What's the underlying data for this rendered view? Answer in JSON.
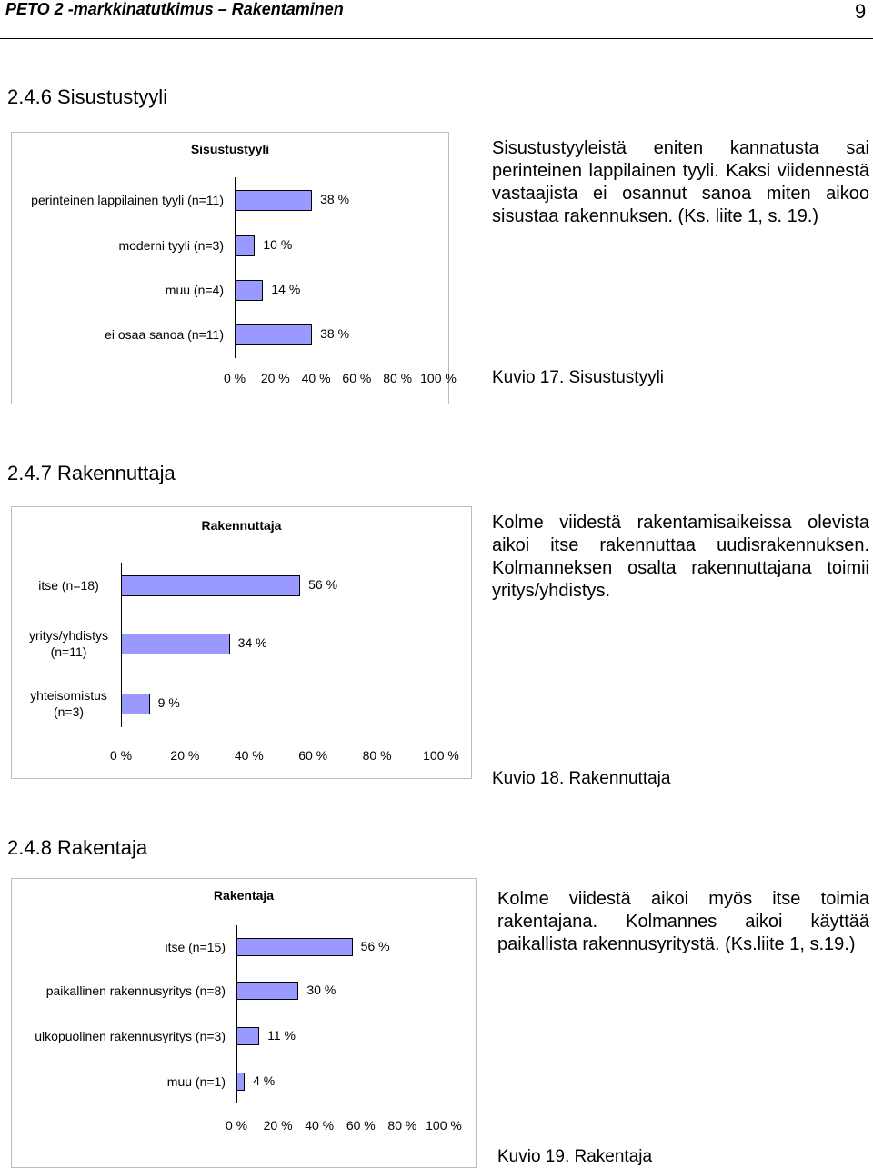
{
  "header": {
    "title": "PETO 2 -markkinatutkimus – Rakentaminen",
    "page_number": "9"
  },
  "sections": [
    {
      "heading": "2.4.6  Sisustustyyli",
      "paragraph": "Sisustustyyleistä eniten kannatusta sai perinteinen lappilainen tyyli. Kaksi viidennestä vastaajista ei osannut sanoa miten aikoo sisustaa rakennuksen. (Ks. liite 1, s. 19.)",
      "caption": "Kuvio 17. Sisustustyyli"
    },
    {
      "heading": "2.4.7  Rakennuttaja",
      "paragraph": "Kolme viidestä rakentamisaikeissa olevista aikoi itse rakennuttaa uudisrakennuksen. Kolmanneksen osalta rakennuttajana toimii yritys/yhdistys.",
      "caption": "Kuvio 18. Rakennuttaja"
    },
    {
      "heading": "2.4.8  Rakentaja",
      "paragraph": "Kolme viidestä aikoi myös itse toimia rakentajana. Kolmannes aikoi käyttää paikallista rakennusyritystä. (Ks.liite 1, s.19.)",
      "caption": "Kuvio 19. Rakentaja"
    }
  ],
  "chart_data": [
    {
      "type": "bar",
      "orientation": "horizontal",
      "title": "Sisustustyyli",
      "categories": [
        "perinteinen lappilainen tyyli (n=11)",
        "moderni tyyli (n=3)",
        "muu (n=4)",
        "ei osaa sanoa (n=11)"
      ],
      "values": [
        38,
        10,
        14,
        38
      ],
      "value_labels": [
        "38 %",
        "10 %",
        "14 %",
        "38 %"
      ],
      "xlim": [
        0,
        100
      ],
      "ticks": [
        "0 %",
        "20 %",
        "40 %",
        "60 %",
        "80 %",
        "100 %"
      ],
      "bar_color": "#9999ff"
    },
    {
      "type": "bar",
      "orientation": "horizontal",
      "title": "Rakennuttaja",
      "categories": [
        "itse (n=18)",
        "yritys/yhdistys (n=11)",
        "yhteisomistus (n=3)"
      ],
      "values": [
        56,
        34,
        9
      ],
      "value_labels": [
        "56 %",
        "34 %",
        "9 %"
      ],
      "xlim": [
        0,
        100
      ],
      "ticks": [
        "0 %",
        "20 %",
        "40 %",
        "60 %",
        "80 %",
        "100 %"
      ],
      "bar_color": "#9999ff"
    },
    {
      "type": "bar",
      "orientation": "horizontal",
      "title": "Rakentaja",
      "categories": [
        "itse  (n=15)",
        "paikallinen rakennusyritys  (n=8)",
        "ulkopuolinen rakennusyritys  (n=3)",
        "muu  (n=1)"
      ],
      "values": [
        56,
        30,
        11,
        4
      ],
      "value_labels": [
        "56 %",
        "30 %",
        "11 %",
        "4 %"
      ],
      "xlim": [
        0,
        100
      ],
      "ticks": [
        "0 %",
        "20 %",
        "40 %",
        "60 %",
        "80 %",
        "100 %"
      ],
      "bar_color": "#9999ff"
    }
  ]
}
